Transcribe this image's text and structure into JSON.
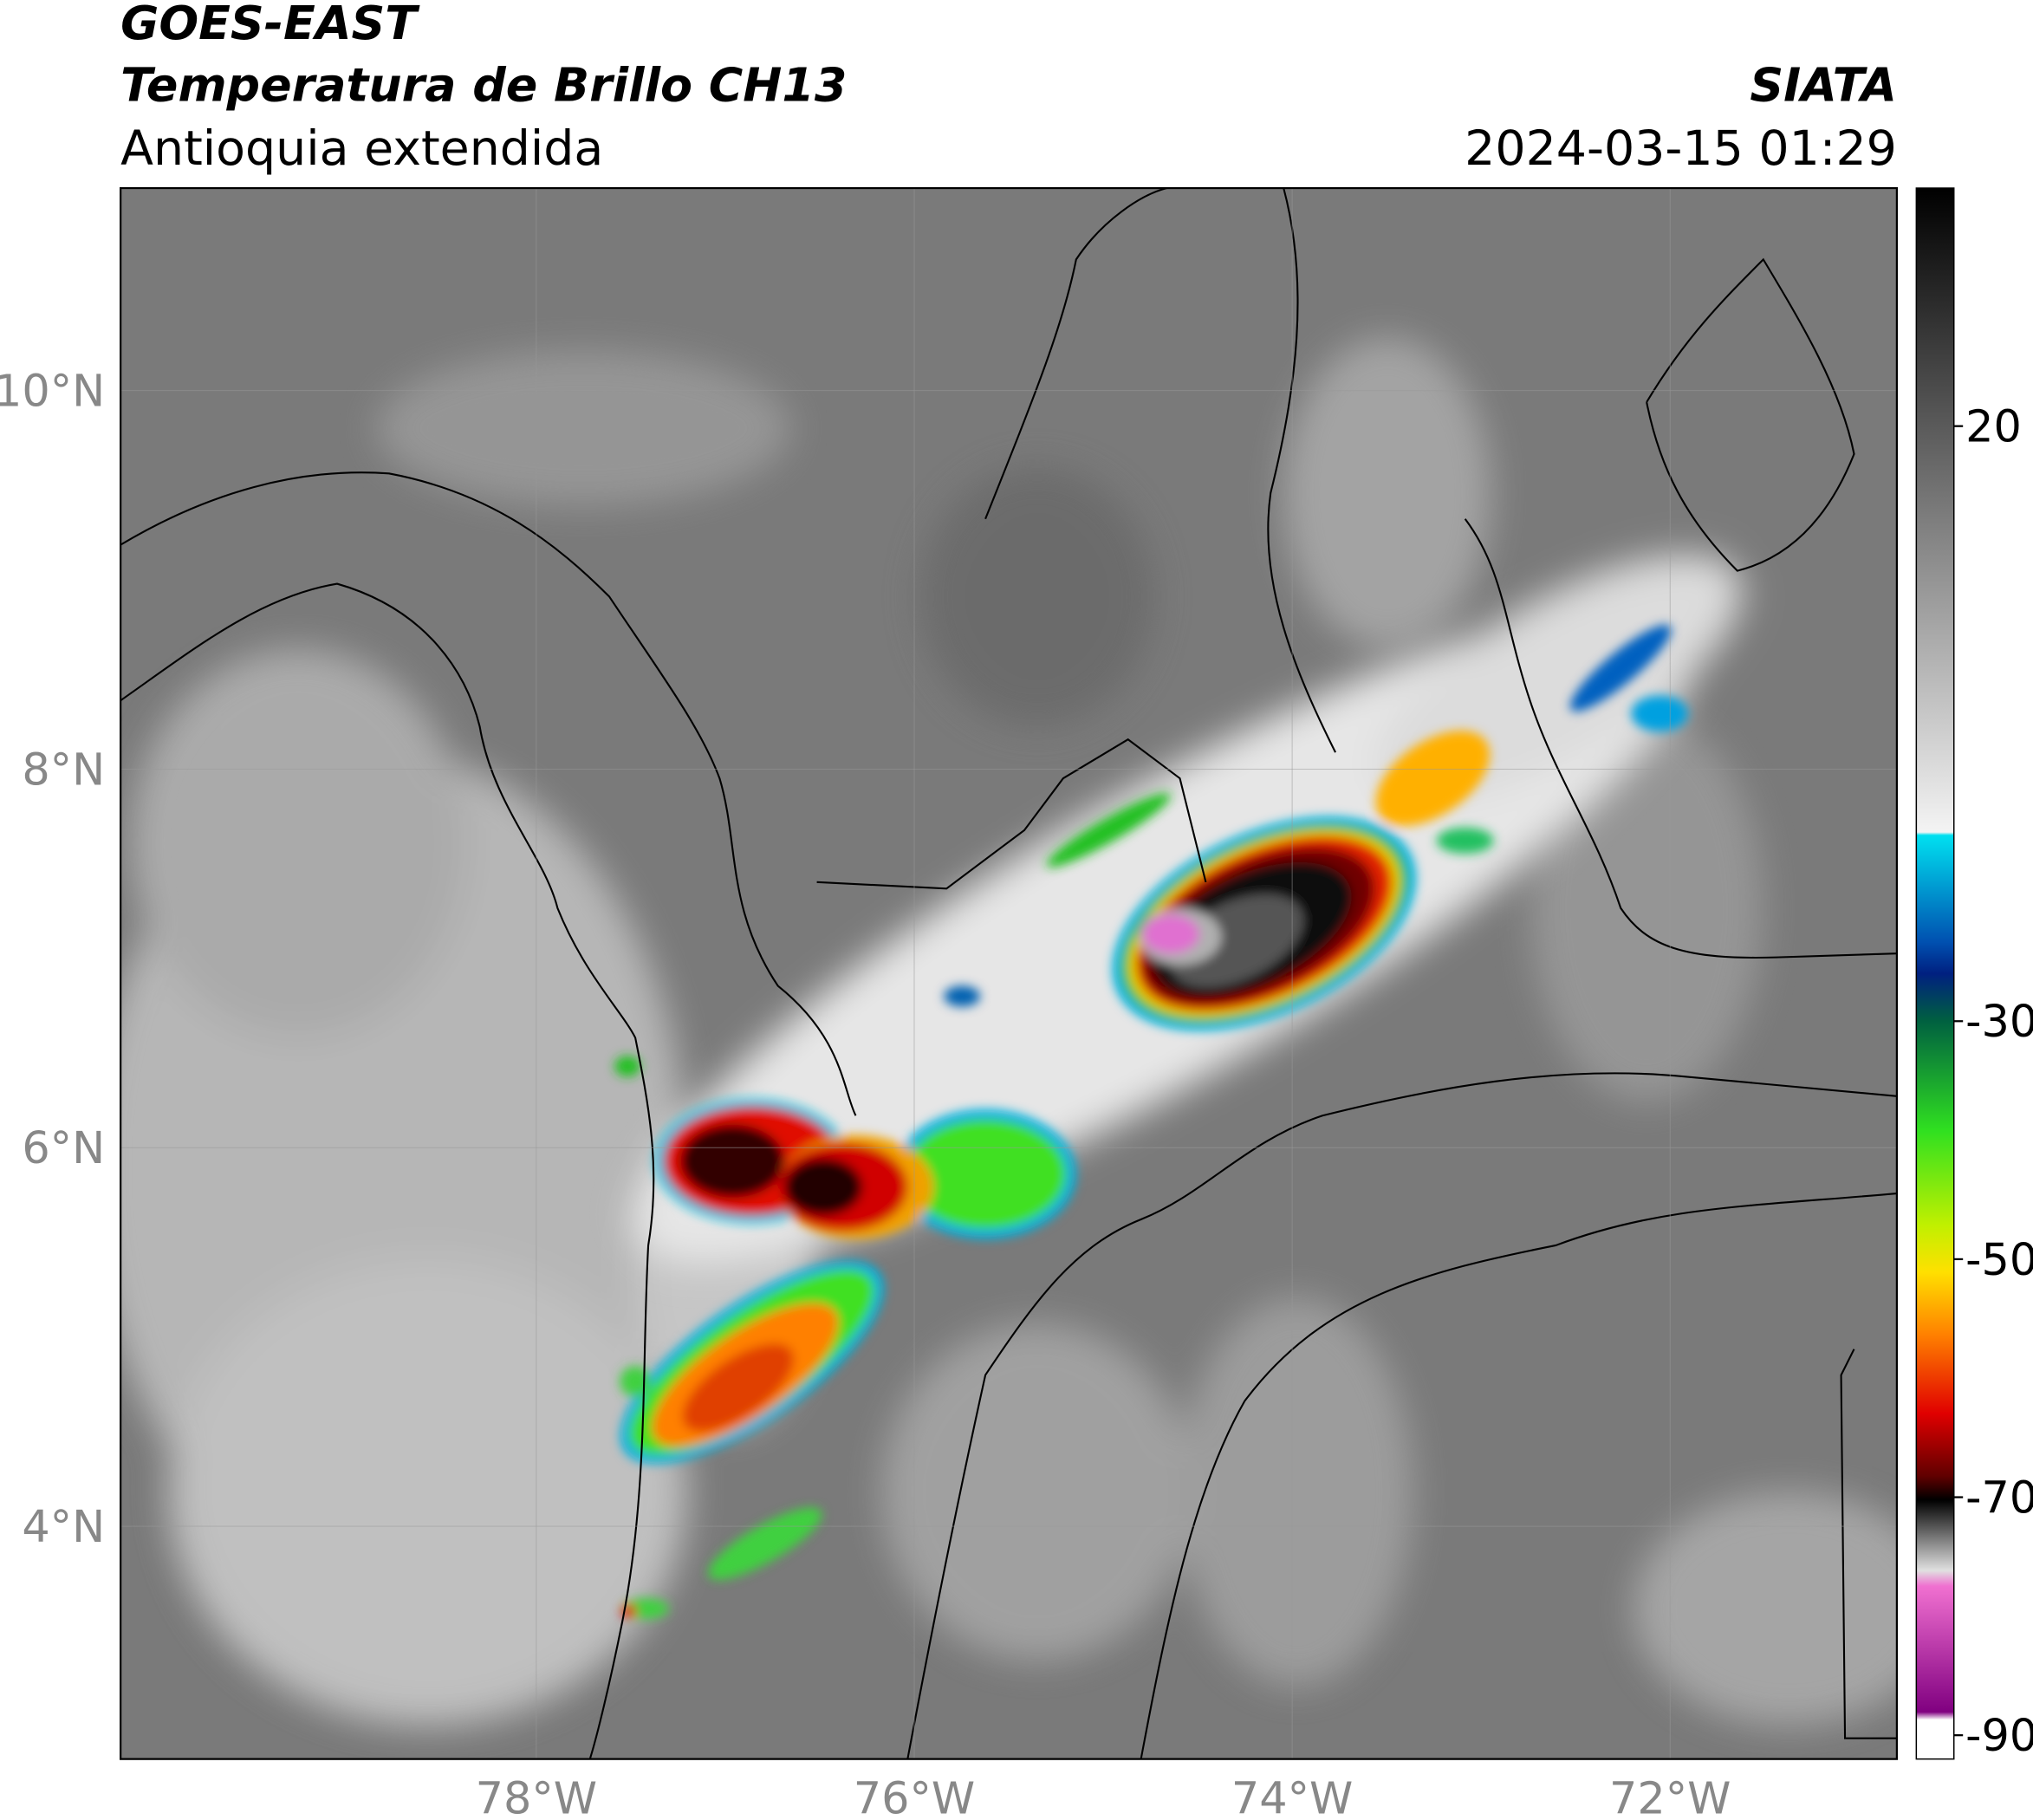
{
  "header": {
    "title": "GOES-EAST",
    "subtitle": "Temperatura de Brillo CH13",
    "region": "Antioquia extendida",
    "source": "SIATA",
    "datetime": "2024-03-15 01:29"
  },
  "map": {
    "xlim": [
      -80.2,
      -70.8
    ],
    "ylim": [
      2.77,
      11.07
    ],
    "xticks": [
      {
        "value": -78,
        "label": "78°W"
      },
      {
        "value": -76,
        "label": "76°W"
      },
      {
        "value": -74,
        "label": "74°W"
      },
      {
        "value": -72,
        "label": "72°W"
      }
    ],
    "yticks": [
      {
        "value": 4,
        "label": "4°N"
      },
      {
        "value": 6,
        "label": "6°N"
      },
      {
        "value": 8,
        "label": "8°N"
      },
      {
        "value": 10,
        "label": "10°N"
      }
    ],
    "grid": true
  },
  "colorbar": {
    "clim": [
      -92,
      40
    ],
    "ticks": [
      20,
      -30,
      -50,
      -70,
      -90
    ]
  }
}
